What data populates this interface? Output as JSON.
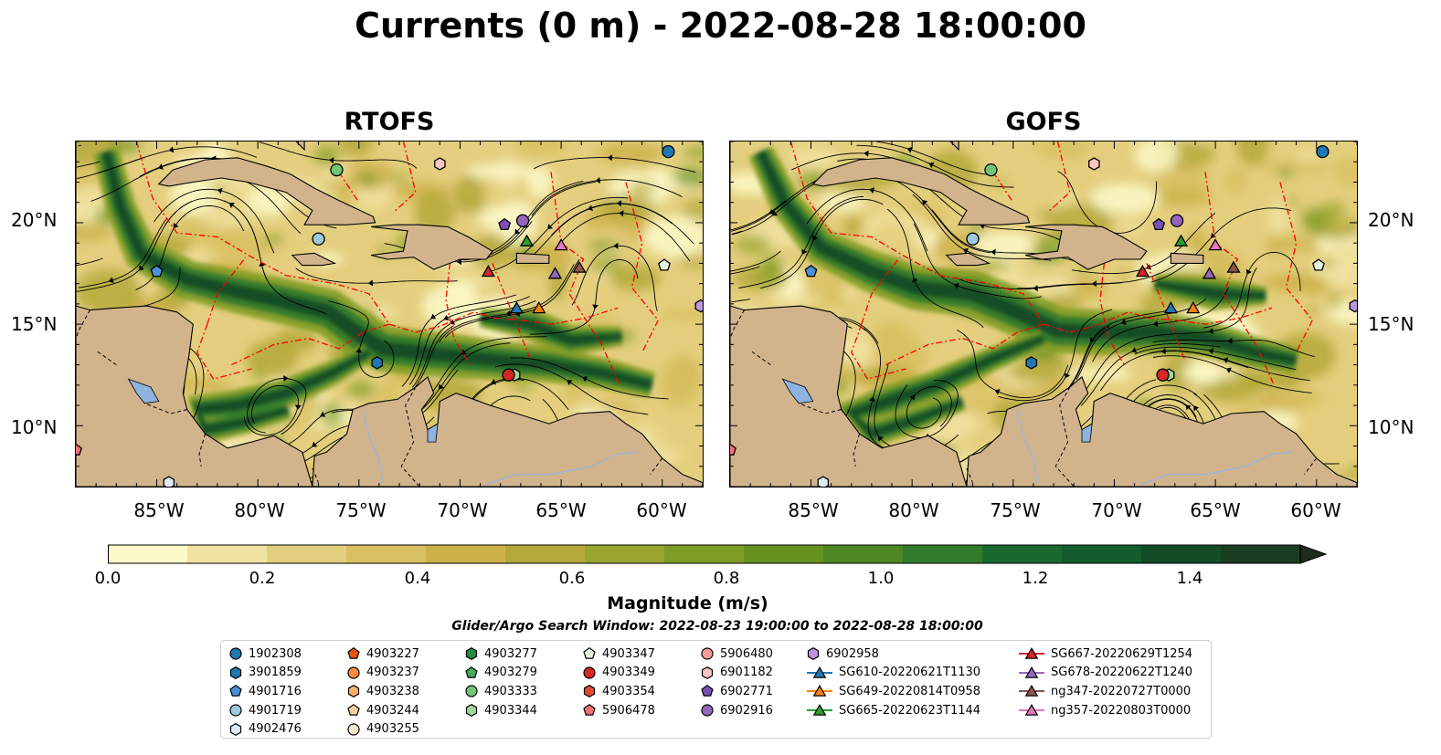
{
  "title": "Currents (0 m) - 2022-08-28 18:00:00",
  "panels": [
    {
      "title": "RTOFS"
    },
    {
      "title": "GOFS"
    }
  ],
  "lat_labels": [
    "20°N",
    "15°N",
    "10°N"
  ],
  "lon_labels": [
    "85°W",
    "80°W",
    "75°W",
    "70°W",
    "65°W",
    "60°W"
  ],
  "map_extent": {
    "lon": [
      -89,
      -58
    ],
    "lat": [
      7,
      24
    ]
  },
  "colorbar": {
    "label": "Magnitude (m/s)",
    "ticks": [
      "0.0",
      "0.2",
      "0.4",
      "0.6",
      "0.8",
      "1.0",
      "1.2",
      "1.4"
    ],
    "range": [
      0,
      1.5
    ],
    "colors": [
      "#fdf9c9",
      "#f0e2a0",
      "#e4cf7e",
      "#d8c062",
      "#cdb24a",
      "#b4a83a",
      "#9aa52f",
      "#7f9c25",
      "#65921f",
      "#4e8722",
      "#327a2c",
      "#1a6a2f",
      "#125c2e",
      "#124d28",
      "#1b3d22",
      "#1f2e1c"
    ]
  },
  "search_window": "Glider/Argo Search Window: 2022-08-23 19:00:00 to 2022-08-28 18:00:00",
  "legend": [
    [
      {
        "label": "1902308",
        "marker": "circle",
        "color": "#1f77b4"
      },
      {
        "label": "3901859",
        "marker": "hexagon",
        "color": "#1f77b4"
      },
      {
        "label": "4901716",
        "marker": "pentagon",
        "color": "#4a90d9"
      },
      {
        "label": "4901719",
        "marker": "circle",
        "color": "#9ecae1"
      },
      {
        "label": "4902476",
        "marker": "hexagon",
        "color": "#deebf7"
      }
    ],
    [
      {
        "label": "4903227",
        "marker": "pentagon",
        "color": "#e6550d"
      },
      {
        "label": "4903237",
        "marker": "circle",
        "color": "#fd8d3c"
      },
      {
        "label": "4903238",
        "marker": "hexagon",
        "color": "#fdae6b"
      },
      {
        "label": "4903244",
        "marker": "pentagon",
        "color": "#fdd0a2"
      },
      {
        "label": "4903255",
        "marker": "circle",
        "color": "#fee6ce"
      }
    ],
    [
      {
        "label": "4903277",
        "marker": "hexagon",
        "color": "#238b45"
      },
      {
        "label": "4903279",
        "marker": "pentagon",
        "color": "#41ab5d"
      },
      {
        "label": "4903333",
        "marker": "circle",
        "color": "#74c476"
      },
      {
        "label": "4903344",
        "marker": "hexagon",
        "color": "#a1d99b"
      }
    ],
    [
      {
        "label": "4903347",
        "marker": "pentagon",
        "color": "#e5f5e0"
      },
      {
        "label": "4903349",
        "marker": "circle",
        "color": "#d62728"
      },
      {
        "label": "4903354",
        "marker": "hexagon",
        "color": "#e34a33"
      },
      {
        "label": "5906478",
        "marker": "pentagon",
        "color": "#f0707a"
      }
    ],
    [
      {
        "label": "5906480",
        "marker": "circle",
        "color": "#fb9a99"
      },
      {
        "label": "6901182",
        "marker": "hexagon",
        "color": "#fcc5c0"
      },
      {
        "label": "6902771",
        "marker": "pentagon",
        "color": "#7b4fb5"
      },
      {
        "label": "6902916",
        "marker": "circle",
        "color": "#9467bd"
      }
    ],
    [
      {
        "label": "6902958",
        "marker": "hexagon",
        "color": "#b996dd"
      },
      {
        "label": "SG610-20220621T1130",
        "marker": "triangle-line",
        "color": "#1f77b4"
      },
      {
        "label": "SG649-20220814T0958",
        "marker": "triangle-line",
        "color": "#ff7f0e"
      },
      {
        "label": "SG665-20220623T1144",
        "marker": "triangle-line",
        "color": "#2ca02c"
      }
    ],
    [
      {
        "label": "SG667-20220629T1254",
        "marker": "triangle-line",
        "color": "#d62728"
      },
      {
        "label": "SG678-20220622T1240",
        "marker": "triangle-line",
        "color": "#9467bd"
      },
      {
        "label": "ng347-20220727T0000",
        "marker": "triangle-line",
        "color": "#8c564b"
      },
      {
        "label": "ng357-20220803T0000",
        "marker": "triangle-line",
        "color": "#e377c2"
      }
    ]
  ],
  "markers": [
    {
      "id": "1902308",
      "lon": -59.7,
      "lat": 23.5,
      "marker": "circle",
      "color": "#1f77b4"
    },
    {
      "id": "3901859",
      "lon": -74.1,
      "lat": 13.1,
      "marker": "hexagon",
      "color": "#1f77b4"
    },
    {
      "id": "4901716",
      "lon": -85.0,
      "lat": 17.6,
      "marker": "pentagon",
      "color": "#4a90d9"
    },
    {
      "id": "4901719",
      "lon": -77.0,
      "lat": 19.2,
      "marker": "circle",
      "color": "#9ecae1"
    },
    {
      "id": "4902476",
      "lon": -84.4,
      "lat": 7.2,
      "marker": "hexagon",
      "color": "#deebf7"
    },
    {
      "id": "4903333",
      "lon": -76.1,
      "lat": 22.6,
      "marker": "circle",
      "color": "#74c476"
    },
    {
      "id": "4903344",
      "lon": -67.3,
      "lat": 12.5,
      "marker": "hexagon",
      "color": "#a1d99b"
    },
    {
      "id": "4903347",
      "lon": -59.9,
      "lat": 17.9,
      "marker": "pentagon",
      "color": "#e5f5e0"
    },
    {
      "id": "4903349",
      "lon": -67.6,
      "lat": 12.5,
      "marker": "circle",
      "color": "#d62728"
    },
    {
      "id": "5906478",
      "lon": -89.0,
      "lat": 8.8,
      "marker": "pentagon",
      "color": "#f0707a"
    },
    {
      "id": "6901182",
      "lon": -71.0,
      "lat": 22.9,
      "marker": "hexagon",
      "color": "#fcc5c0"
    },
    {
      "id": "6902771",
      "lon": -67.8,
      "lat": 19.9,
      "marker": "pentagon",
      "color": "#7b4fb5"
    },
    {
      "id": "6902916",
      "lon": -66.9,
      "lat": 20.1,
      "marker": "circle",
      "color": "#9467bd"
    },
    {
      "id": "6902958",
      "lon": -58.1,
      "lat": 15.9,
      "marker": "hexagon",
      "color": "#b996dd"
    },
    {
      "id": "SG610",
      "lon": -67.2,
      "lat": 15.8,
      "marker": "triangle",
      "color": "#1f77b4"
    },
    {
      "id": "SG649",
      "lon": -66.1,
      "lat": 15.8,
      "marker": "triangle",
      "color": "#ff7f0e"
    },
    {
      "id": "SG665",
      "lon": -66.7,
      "lat": 19.1,
      "marker": "triangle",
      "color": "#2ca02c"
    },
    {
      "id": "SG667",
      "lon": -68.6,
      "lat": 17.6,
      "marker": "triangle",
      "color": "#d62728"
    },
    {
      "id": "SG678",
      "lon": -65.3,
      "lat": 17.5,
      "marker": "triangle",
      "color": "#9467bd"
    },
    {
      "id": "ng347",
      "lon": -64.1,
      "lat": 17.8,
      "marker": "triangle",
      "color": "#8c564b"
    },
    {
      "id": "ng357",
      "lon": -65.0,
      "lat": 18.9,
      "marker": "triangle",
      "color": "#e377c2"
    }
  ],
  "colors": {
    "land": "#d2b48c",
    "background": "#ffffff",
    "eez": "#ff0000",
    "lake": "#8fb3e0"
  }
}
